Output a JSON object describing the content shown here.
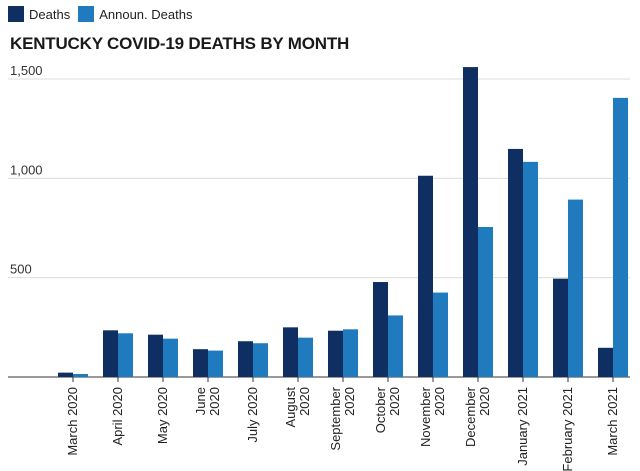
{
  "legend": {
    "deaths_label": "Deaths",
    "announ_label": "Announ. Deaths"
  },
  "title": "KENTUCKY COVID-19 DEATHS BY MONTH",
  "colors": {
    "deaths": "#0f2f63",
    "announ": "#1f7bbd",
    "grid": "#dcdcdc",
    "axis": "#333333"
  },
  "chart_data": {
    "type": "bar",
    "title": "KENTUCKY COVID-19 DEATHS BY MONTH",
    "categories": [
      [
        "March 2020"
      ],
      [
        "April 2020"
      ],
      [
        "May 2020"
      ],
      [
        "June",
        "2020"
      ],
      [
        "July 2020"
      ],
      [
        "August",
        "2020"
      ],
      [
        "September",
        "2020"
      ],
      [
        "October",
        "2020"
      ],
      [
        "November",
        "2020"
      ],
      [
        "December",
        "2020"
      ],
      [
        "January 2021"
      ],
      [
        "February 2021"
      ],
      [
        "March 2021"
      ]
    ],
    "series": [
      {
        "name": "Deaths",
        "values": [
          22,
          235,
          213,
          140,
          180,
          250,
          233,
          478,
          1013,
          1560,
          1148,
          495,
          147
        ]
      },
      {
        "name": "Announ. Deaths",
        "values": [
          15,
          220,
          193,
          133,
          170,
          198,
          240,
          310,
          425,
          755,
          1083,
          893,
          1405
        ]
      }
    ],
    "ylim": [
      0,
      1600
    ],
    "yticks": [
      500,
      1000,
      1500
    ],
    "ytick_labels": [
      "500",
      "1,000",
      "1,500"
    ],
    "xlabel": "",
    "ylabel": "",
    "grid": true,
    "legend_position": "top-left"
  }
}
